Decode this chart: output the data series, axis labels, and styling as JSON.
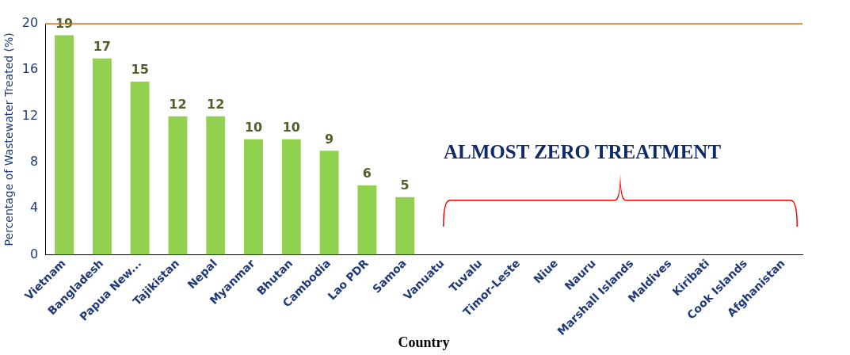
{
  "chart_data": {
    "type": "bar",
    "xlabel": "Country",
    "ylabel": "Percentage of Wastewater Treated (%)",
    "categories": [
      "Vietnam",
      "Bangladesh",
      "Papua New...",
      "Tajikistan",
      "Nepal",
      "Myanmar",
      "Bhutan",
      "Cambodia",
      "Lao PDR",
      "Samoa",
      "Vanuatu",
      "Tuvalu",
      "Timor-Leste",
      "Niue",
      "Nauru",
      "Marshall Islands",
      "Maldives",
      "Kiribati",
      "Cook Islands",
      "Afghanistan"
    ],
    "values": [
      19,
      17,
      15,
      12,
      12,
      10,
      10,
      9,
      6,
      5,
      0,
      0,
      0,
      0,
      0,
      0,
      0,
      0,
      0,
      0
    ],
    "value_labels": [
      "19",
      "17",
      "15",
      "12",
      "12",
      "10",
      "10",
      "9",
      "6",
      "5",
      null,
      null,
      null,
      null,
      null,
      null,
      null,
      null,
      null,
      null
    ],
    "color": "#92d050",
    "ylim": [
      0,
      20
    ],
    "yticks": [
      0,
      4,
      8,
      12,
      16,
      20
    ],
    "grid": false,
    "legend": false,
    "ref_lines": [
      {
        "axis": "y",
        "value": 20,
        "color": "#e46c0a"
      }
    ],
    "annotations": [
      "ALMOST ZERO TREATMENT"
    ]
  }
}
